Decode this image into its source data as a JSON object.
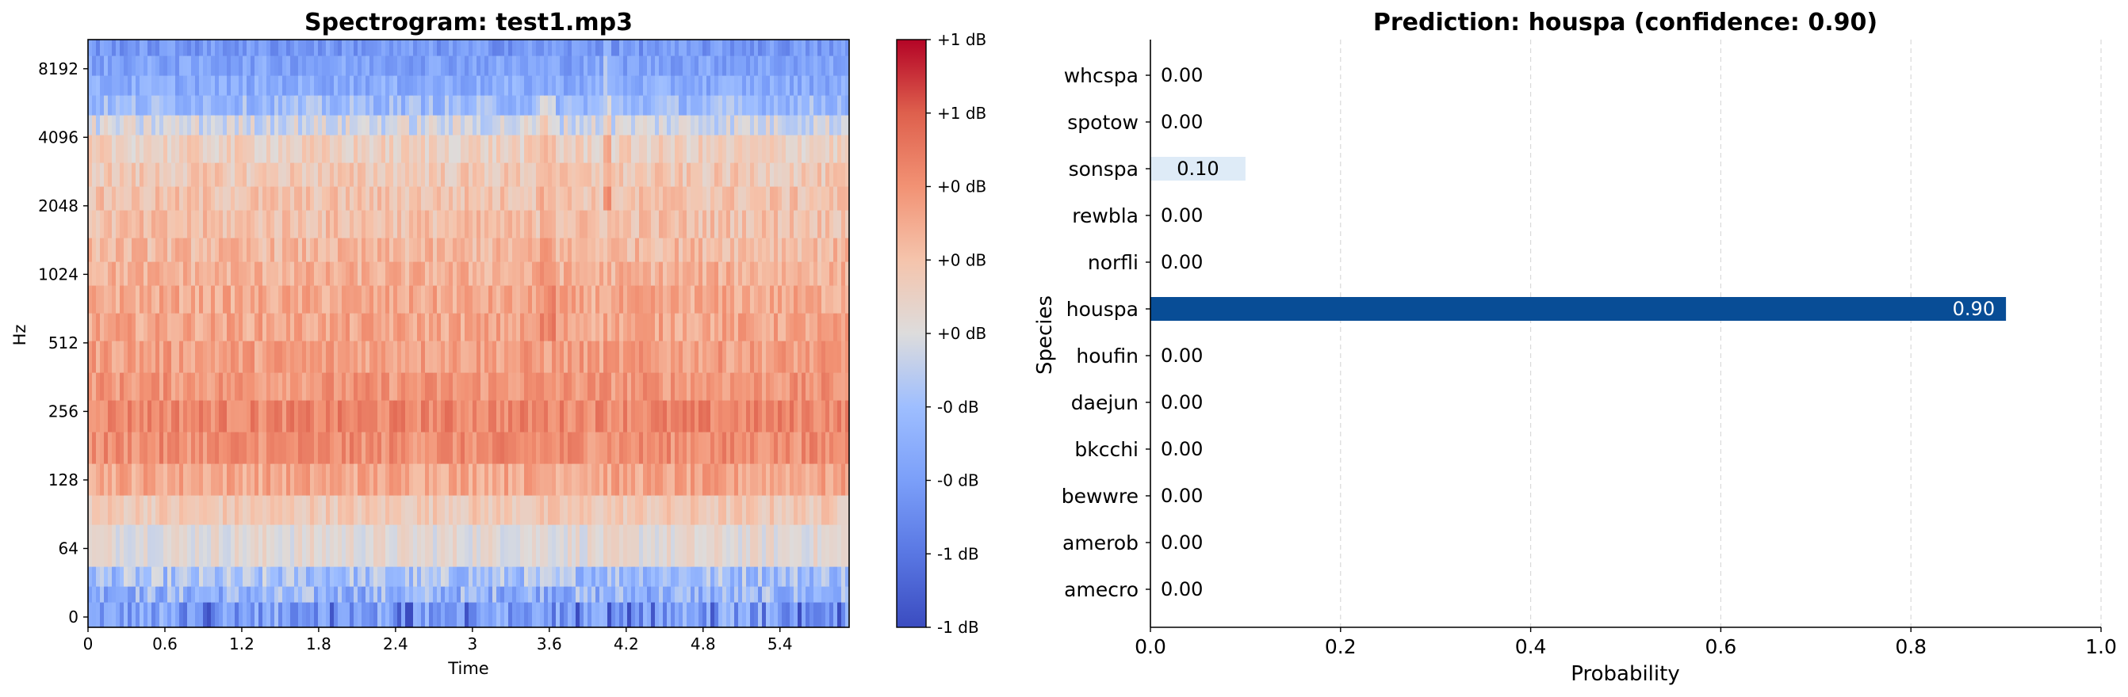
{
  "chart_data": [
    {
      "type": "heatmap",
      "title": "Spectrogram: test1.mp3",
      "xlabel": "Time",
      "ylabel": "Hz",
      "x_ticks": [
        "0",
        "0.6",
        "1.2",
        "1.8",
        "2.4",
        "3",
        "3.6",
        "4.2",
        "4.8",
        "5.4"
      ],
      "x_tick_values": [
        0,
        0.6,
        1.2,
        1.8,
        2.4,
        3.0,
        3.6,
        4.2,
        4.8,
        5.4
      ],
      "xlim": [
        0,
        5.94
      ],
      "y_scale": "symlog",
      "y_ticks": [
        "0",
        "64",
        "128",
        "256",
        "512",
        "1024",
        "2048",
        "4096",
        "8192"
      ],
      "y_tick_values": [
        0,
        64,
        128,
        256,
        512,
        1024,
        2048,
        4096,
        8192
      ],
      "colormap": "coolwarm",
      "colorbar_ticks": [
        "+1 dB",
        "+1 dB",
        "+0 dB",
        "+0 dB",
        "+0 dB",
        "-0 dB",
        "-0 dB",
        "-1 dB",
        "-1 dB"
      ]
    },
    {
      "type": "bar",
      "orientation": "horizontal",
      "title": "Prediction: houspa (confidence: 0.90)",
      "xlabel": "Probability",
      "ylabel": "Species",
      "xlim": [
        0,
        1.0
      ],
      "x_ticks": [
        "0.0",
        "0.2",
        "0.4",
        "0.6",
        "0.8",
        "1.0"
      ],
      "x_tick_values": [
        0,
        0.2,
        0.4,
        0.6,
        0.8,
        1.0
      ],
      "grid": "vertical dashed",
      "categories": [
        "amecro",
        "amerob",
        "bewwre",
        "bkcchi",
        "daejun",
        "houfin",
        "houspa",
        "norfli",
        "rewbla",
        "sonspa",
        "spotow",
        "whcspa"
      ],
      "values": [
        0.0,
        0.0,
        0.0,
        0.0,
        0.0,
        0.0,
        0.9,
        0.0,
        0.0,
        0.1,
        0.0,
        0.0
      ],
      "value_labels": [
        "0.00",
        "0.00",
        "0.00",
        "0.00",
        "0.00",
        "0.00",
        "0.90",
        "0.00",
        "0.00",
        "0.10",
        "0.00",
        "0.00"
      ],
      "colors": {
        "max": "#084d96",
        "low": "#deebf7"
      }
    }
  ]
}
